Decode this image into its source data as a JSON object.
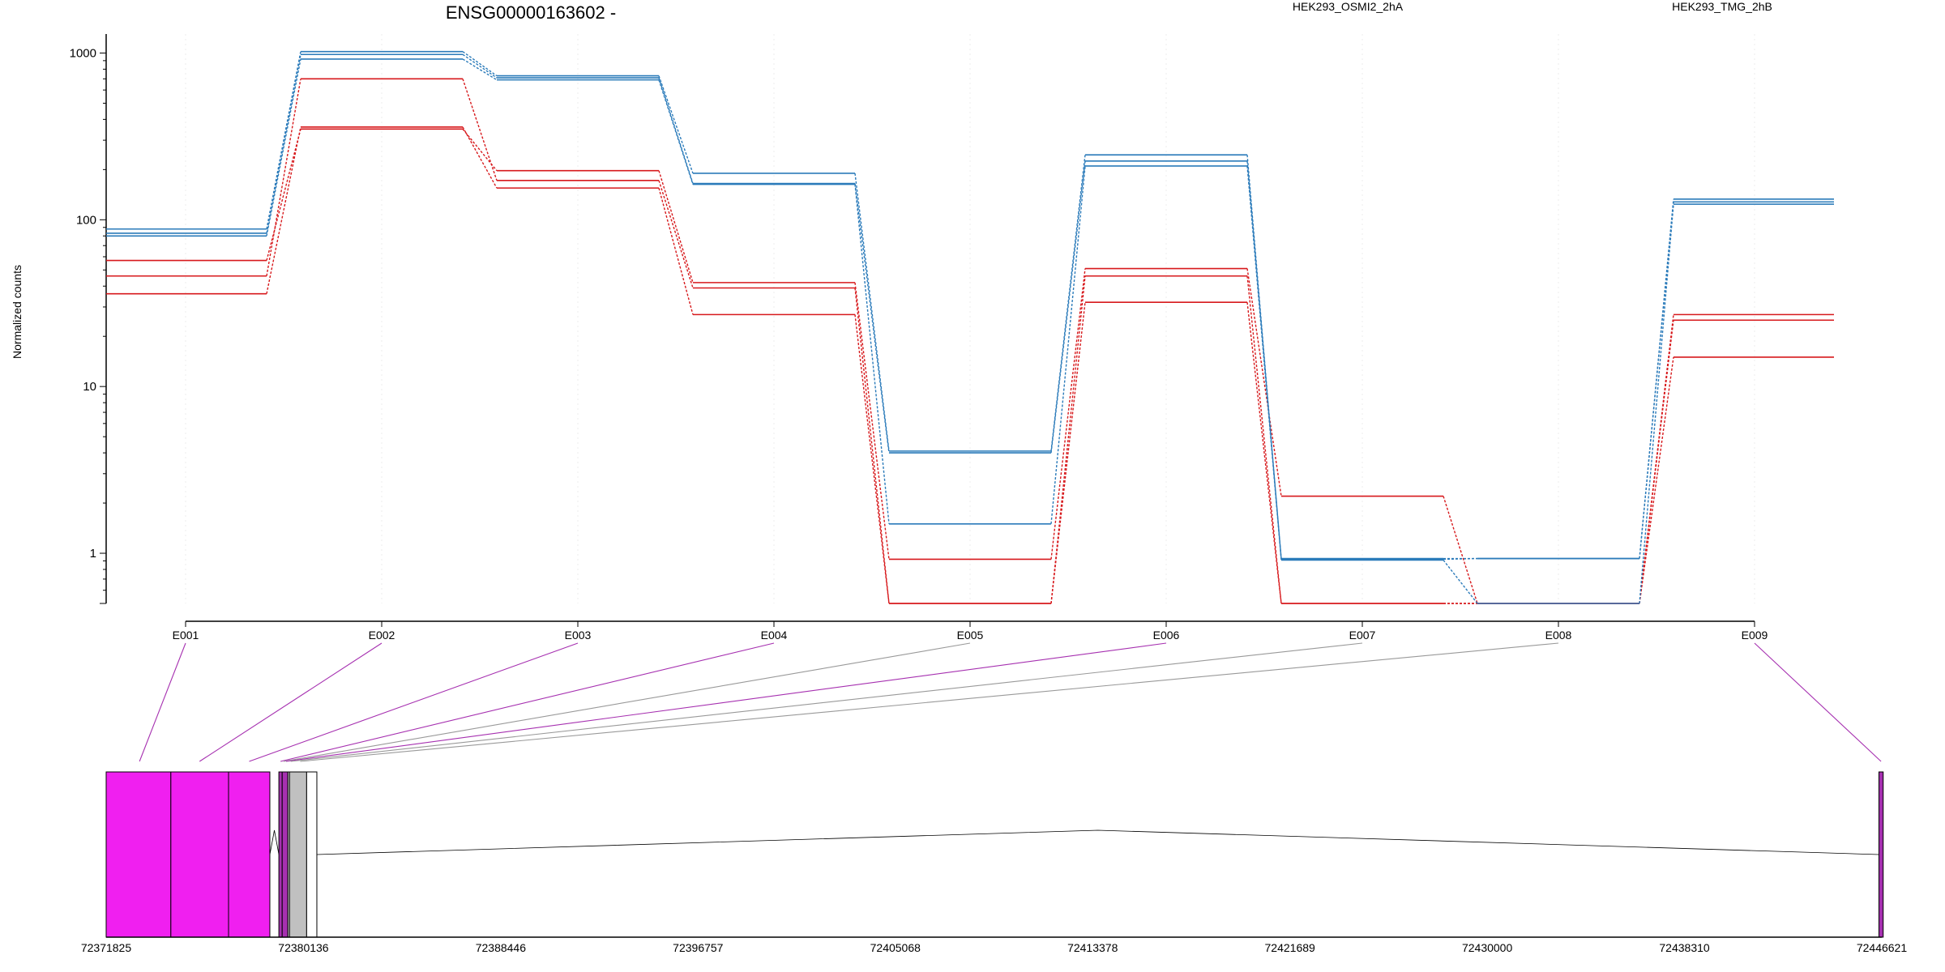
{
  "chart_data": {
    "type": "line",
    "title": "ENSG00000163602 -",
    "ylabel": "Normalized counts",
    "xlabel": "",
    "y_scale": "log",
    "ylim": [
      0.5,
      1300
    ],
    "y_ticks": [
      1,
      10,
      100,
      1000
    ],
    "y_tick_labels": [
      "1",
      "10",
      "100",
      "1000"
    ],
    "grid": "vertical-at-exons",
    "legend": [
      {
        "name": "HEK293_OSMI2_2hA",
        "color": "#d7191c"
      },
      {
        "name": "HEK293_TMG_2hB",
        "color": "#2b7bba"
      }
    ],
    "categories": [
      "E001",
      "E002",
      "E003",
      "E004",
      "E005",
      "E006",
      "E007",
      "E008",
      "E009"
    ],
    "series": [
      {
        "group": "HEK293_OSMI2_2hA",
        "color": "#d7191c",
        "values": [
          57,
          350,
          197,
          42,
          0.92,
          51,
          2.2,
          0.5,
          27
        ]
      },
      {
        "group": "HEK293_OSMI2_2hA",
        "color": "#d7191c",
        "values": [
          46,
          700,
          172,
          39,
          0.5,
          46,
          0.5,
          0.5,
          25
        ]
      },
      {
        "group": "HEK293_OSMI2_2hA",
        "color": "#d7191c",
        "values": [
          36,
          360,
          155,
          27,
          0.5,
          32,
          0.5,
          0.5,
          15
        ]
      },
      {
        "group": "HEK293_TMG_2hB",
        "color": "#2b7bba",
        "values": [
          88,
          1020,
          730,
          190,
          4.1,
          245,
          0.92,
          0.93,
          133
        ]
      },
      {
        "group": "HEK293_TMG_2hB",
        "color": "#2b7bba",
        "values": [
          83,
          980,
          710,
          165,
          4.0,
          225,
          0.93,
          0.93,
          128
        ]
      },
      {
        "group": "HEK293_TMG_2hB",
        "color": "#2b7bba",
        "values": [
          80,
          920,
          690,
          163,
          1.5,
          210,
          0.91,
          0.5,
          124
        ]
      }
    ],
    "genome_track": {
      "x_ticks": [
        "72371825",
        "72380136",
        "72388446",
        "72396757",
        "72405068",
        "72413378",
        "72421689",
        "72430000",
        "72438310",
        "72446621"
      ],
      "x_range": [
        72371825,
        72446621
      ],
      "exons": [
        {
          "start": 72371825,
          "end": 72374550,
          "color": "#f01ff0"
        },
        {
          "start": 72374550,
          "end": 72376980,
          "color": "#f01ff0"
        },
        {
          "start": 72376980,
          "end": 72378720,
          "color": "#f01ff0"
        },
        {
          "start": 72379100,
          "end": 72379240,
          "color": "#a630b0"
        },
        {
          "start": 72379240,
          "end": 72379480,
          "color": "#a630b0"
        },
        {
          "start": 72379480,
          "end": 72379550,
          "color": "#cfcfcf"
        },
        {
          "start": 72379550,
          "end": 72380270,
          "color": "#c0c0c0"
        },
        {
          "start": 72380270,
          "end": 72380700,
          "color": "#ffffff"
        },
        {
          "start": 72446500,
          "end": 72446680,
          "color": "#a630b0"
        }
      ],
      "connectors": [
        {
          "exon": "E001",
          "target": 72373230,
          "color": "#a630b0"
        },
        {
          "exon": "E002",
          "target": 72375760,
          "color": "#a630b0"
        },
        {
          "exon": "E003",
          "target": 72377850,
          "color": "#a630b0"
        },
        {
          "exon": "E004",
          "target": 72379170,
          "color": "#a630b0"
        },
        {
          "exon": "E005",
          "target": 72379300,
          "color": "#999999"
        },
        {
          "exon": "E006",
          "target": 72379400,
          "color": "#a630b0"
        },
        {
          "exon": "E007",
          "target": 72379600,
          "color": "#999999"
        },
        {
          "exon": "E008",
          "target": 72380000,
          "color": "#999999"
        },
        {
          "exon": "E009",
          "target": 72446590,
          "color": "#a630b0"
        }
      ]
    }
  }
}
